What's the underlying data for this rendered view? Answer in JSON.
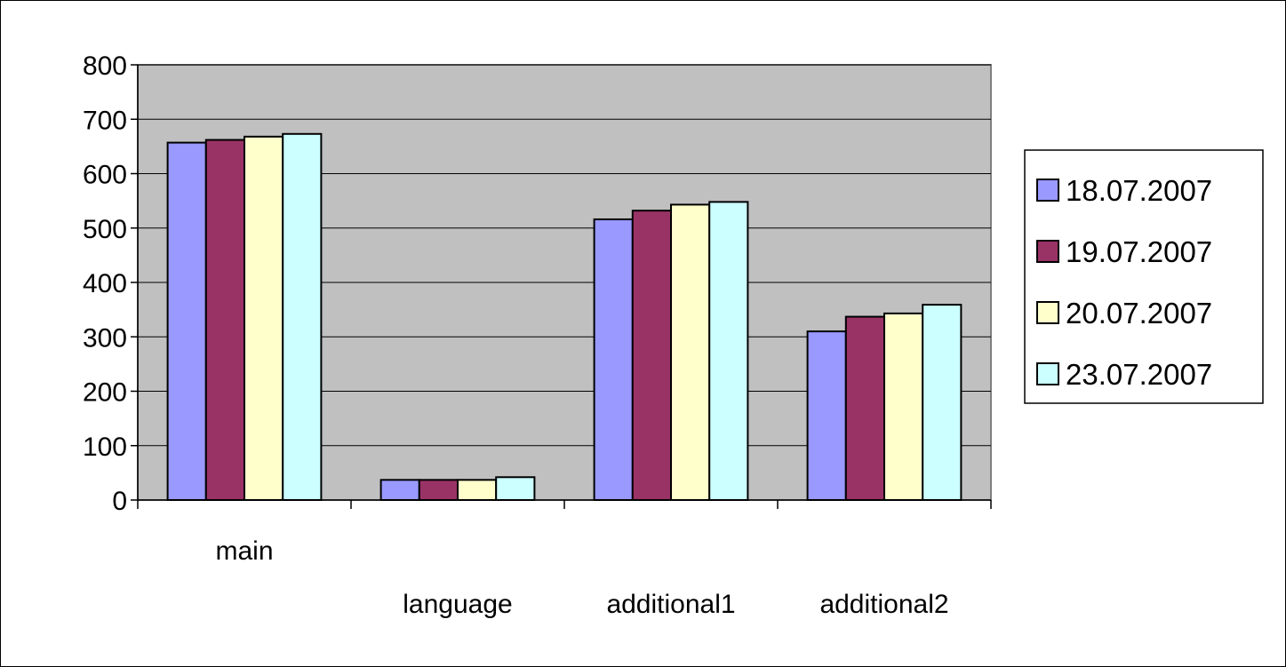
{
  "chart_data": {
    "type": "bar",
    "title": "",
    "xlabel": "",
    "ylabel": "",
    "categories": [
      "main",
      "language",
      "additional1",
      "additional2"
    ],
    "series": [
      {
        "name": "18.07.2007",
        "color": "#9999FF",
        "values": [
          657,
          37,
          516,
          310
        ]
      },
      {
        "name": "19.07.2007",
        "color": "#993366",
        "values": [
          662,
          37,
          532,
          337
        ]
      },
      {
        "name": "20.07.2007",
        "color": "#FFFFCC",
        "values": [
          668,
          37,
          543,
          343
        ]
      },
      {
        "name": "23.07.2007",
        "color": "#CCFFFF",
        "values": [
          673,
          42,
          548,
          359
        ]
      }
    ],
    "ylim": [
      0,
      800
    ],
    "yticks": [
      "0",
      "100",
      "200",
      "300",
      "400",
      "500",
      "600",
      "700",
      "800"
    ],
    "grid": true,
    "plot_background": "#C0C0C0",
    "legend_position": "right"
  }
}
